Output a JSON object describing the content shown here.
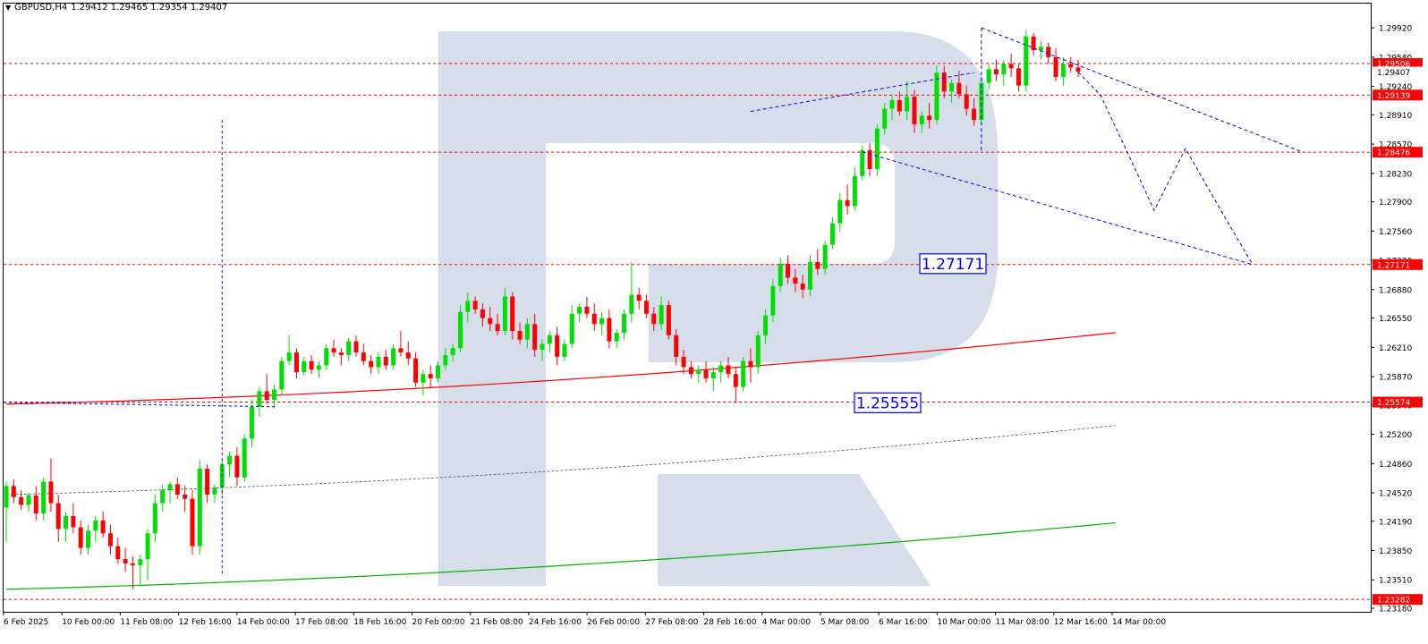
{
  "header": {
    "symbol": "GBPUSD,H4",
    "ohlc": "1.29412 1.29465 1.29354 1.29407"
  },
  "chart_data": {
    "type": "candlestick",
    "symbol": "GBPUSD",
    "timeframe": "H4",
    "y_range": [
      1.2318,
      1.3015
    ],
    "y_ticks": [
      "1.29920",
      "1.29580",
      "1.29240",
      "1.28910",
      "1.28570",
      "1.28230",
      "1.27900",
      "1.27560",
      "1.27220",
      "1.26880",
      "1.26550",
      "1.26210",
      "1.25870",
      "1.25540",
      "1.25200",
      "1.24860",
      "1.24520",
      "1.24190",
      "1.23850",
      "1.23510",
      "1.23180"
    ],
    "x_tick_labels": [
      "6 Feb 2025",
      "10 Feb 00:00",
      "11 Feb 08:00",
      "12 Feb 16:00",
      "14 Feb 00:00",
      "17 Feb 08:00",
      "18 Feb 16:00",
      "20 Feb 00:00",
      "21 Feb 08:00",
      "24 Feb 16:00",
      "26 Feb 00:00",
      "27 Feb 08:00",
      "28 Feb 16:00",
      "4 Mar 00:00",
      "5 Mar 08:00",
      "6 Mar 16:00",
      "10 Mar 00:00",
      "11 Mar 08:00",
      "12 Mar 16:00",
      "14 Mar 00:00"
    ],
    "price_tags": [
      {
        "value": "1.29506",
        "color": "#ff0000",
        "text_color": "#ffffff"
      },
      {
        "value": "1.29407",
        "color": "#ffffff",
        "text_color": "#000000"
      },
      {
        "value": "1.29139",
        "color": "#ff0000",
        "text_color": "#ffffff"
      },
      {
        "value": "1.28476",
        "color": "#ff0000",
        "text_color": "#ffffff"
      },
      {
        "value": "1.27171",
        "color": "#ff0000",
        "text_color": "#ffffff"
      },
      {
        "value": "1.25574",
        "color": "#ff0000",
        "text_color": "#ffffff"
      },
      {
        "value": "1.23282",
        "color": "#ff0000",
        "text_color": "#ffffff"
      }
    ],
    "horizontal_levels": [
      1.29506,
      1.29139,
      1.28476,
      1.27171,
      1.25574,
      1.23282
    ],
    "target_labels": [
      {
        "text": "1.27171",
        "price": 1.27171
      },
      {
        "text": "1.25555",
        "price": 1.25555
      }
    ],
    "colors": {
      "bull": "#00e000",
      "bear": "#ff0000",
      "level": "#ff0000",
      "upper_band": "#ff0000",
      "lower_band": "#00b000",
      "mid_line": "#555555",
      "projection": "#0000ff",
      "watermark": "#d5deea"
    },
    "candles": [
      [
        1.2435,
        1.2465,
        1.2395,
        1.246
      ],
      [
        1.246,
        1.2468,
        1.244,
        1.2447
      ],
      [
        1.2447,
        1.2455,
        1.2432,
        1.2438
      ],
      [
        1.2438,
        1.2452,
        1.243,
        1.2449
      ],
      [
        1.2449,
        1.246,
        1.242,
        1.2428
      ],
      [
        1.2428,
        1.247,
        1.242,
        1.2465
      ],
      [
        1.2465,
        1.2492,
        1.243,
        1.244
      ],
      [
        1.244,
        1.245,
        1.2395,
        1.241
      ],
      [
        1.241,
        1.243,
        1.2395,
        1.2425
      ],
      [
        1.2425,
        1.244,
        1.2405,
        1.2412
      ],
      [
        1.2412,
        1.242,
        1.238,
        1.2388
      ],
      [
        1.2388,
        1.2415,
        1.238,
        1.2408
      ],
      [
        1.2408,
        1.2425,
        1.2395,
        1.242
      ],
      [
        1.242,
        1.243,
        1.24,
        1.2405
      ],
      [
        1.2405,
        1.2415,
        1.238,
        1.239
      ],
      [
        1.239,
        1.24,
        1.237,
        1.2375
      ],
      [
        1.2375,
        1.2388,
        1.236,
        1.237
      ],
      [
        1.237,
        1.2378,
        1.234,
        1.2368
      ],
      [
        1.2368,
        1.238,
        1.2345,
        1.2375
      ],
      [
        1.2375,
        1.241,
        1.235,
        1.2405
      ],
      [
        1.2405,
        1.245,
        1.2395,
        1.244
      ],
      [
        1.244,
        1.2462,
        1.243,
        1.2455
      ],
      [
        1.2455,
        1.2465,
        1.244,
        1.2462
      ],
      [
        1.2462,
        1.247,
        1.2445,
        1.245
      ],
      [
        1.245,
        1.246,
        1.243,
        1.2445
      ],
      [
        1.2445,
        1.2455,
        1.238,
        1.239
      ],
      [
        1.239,
        1.249,
        1.238,
        1.248
      ],
      [
        1.248,
        1.2485,
        1.244,
        1.245
      ],
      [
        1.245,
        1.2462,
        1.244,
        1.2458
      ],
      [
        1.2458,
        1.249,
        1.245,
        1.2485
      ],
      [
        1.2485,
        1.25,
        1.247,
        1.2495
      ],
      [
        1.2495,
        1.2505,
        1.246,
        1.247
      ],
      [
        1.247,
        1.252,
        1.2465,
        1.2515
      ],
      [
        1.2515,
        1.256,
        1.2505,
        1.2552
      ],
      [
        1.2552,
        1.2575,
        1.254,
        1.257
      ],
      [
        1.257,
        1.259,
        1.2555,
        1.256
      ],
      [
        1.256,
        1.2578,
        1.255,
        1.2572
      ],
      [
        1.2572,
        1.261,
        1.2565,
        1.2605
      ],
      [
        1.2605,
        1.2635,
        1.26,
        1.2615
      ],
      [
        1.2615,
        1.262,
        1.2585,
        1.2592
      ],
      [
        1.2592,
        1.261,
        1.2588,
        1.2605
      ],
      [
        1.2605,
        1.2612,
        1.259,
        1.2595
      ],
      [
        1.2595,
        1.2605,
        1.2585,
        1.26
      ],
      [
        1.26,
        1.2625,
        1.2595,
        1.262
      ],
      [
        1.262,
        1.263,
        1.261,
        1.2615
      ],
      [
        1.2615,
        1.262,
        1.26,
        1.2612
      ],
      [
        1.2612,
        1.2632,
        1.2605,
        1.2628
      ],
      [
        1.2628,
        1.2635,
        1.261,
        1.2615
      ],
      [
        1.2615,
        1.2625,
        1.26,
        1.2605
      ],
      [
        1.2605,
        1.2612,
        1.259,
        1.2598
      ],
      [
        1.2598,
        1.2615,
        1.259,
        1.261
      ],
      [
        1.261,
        1.2618,
        1.2595,
        1.26
      ],
      [
        1.26,
        1.2625,
        1.2595,
        1.262
      ],
      [
        1.262,
        1.264,
        1.261,
        1.2615
      ],
      [
        1.2615,
        1.2628,
        1.26,
        1.2608
      ],
      [
        1.2608,
        1.2615,
        1.2575,
        1.258
      ],
      [
        1.258,
        1.2595,
        1.2565,
        1.259
      ],
      [
        1.259,
        1.26,
        1.2575,
        1.2585
      ],
      [
        1.2585,
        1.2605,
        1.258,
        1.26
      ],
      [
        1.26,
        1.262,
        1.2595,
        1.2612
      ],
      [
        1.2612,
        1.2625,
        1.2605,
        1.262
      ],
      [
        1.262,
        1.267,
        1.2615,
        1.2662
      ],
      [
        1.2662,
        1.2685,
        1.265,
        1.2675
      ],
      [
        1.2675,
        1.268,
        1.266,
        1.2665
      ],
      [
        1.2665,
        1.2672,
        1.2645,
        1.2655
      ],
      [
        1.2655,
        1.2668,
        1.264,
        1.2648
      ],
      [
        1.2648,
        1.266,
        1.2635,
        1.264
      ],
      [
        1.264,
        1.269,
        1.2635,
        1.268
      ],
      [
        1.268,
        1.2685,
        1.263,
        1.264
      ],
      [
        1.264,
        1.265,
        1.2625,
        1.263
      ],
      [
        1.263,
        1.2655,
        1.262,
        1.2648
      ],
      [
        1.2648,
        1.266,
        1.261,
        1.2618
      ],
      [
        1.2618,
        1.263,
        1.2605,
        1.2625
      ],
      [
        1.2625,
        1.264,
        1.2615,
        1.2635
      ],
      [
        1.2635,
        1.2645,
        1.26,
        1.261
      ],
      [
        1.261,
        1.263,
        1.2605,
        1.2625
      ],
      [
        1.2625,
        1.267,
        1.262,
        1.266
      ],
      [
        1.266,
        1.2672,
        1.265,
        1.2668
      ],
      [
        1.2668,
        1.268,
        1.2655,
        1.266
      ],
      [
        1.266,
        1.2672,
        1.264,
        1.2648
      ],
      [
        1.2648,
        1.2662,
        1.2635,
        1.2655
      ],
      [
        1.2655,
        1.2665,
        1.262,
        1.2628
      ],
      [
        1.2628,
        1.2642,
        1.262,
        1.2638
      ],
      [
        1.2638,
        1.2665,
        1.263,
        1.266
      ],
      [
        1.266,
        1.272,
        1.265,
        1.2682
      ],
      [
        1.2682,
        1.269,
        1.2665,
        1.2675
      ],
      [
        1.2675,
        1.2682,
        1.2655,
        1.266
      ],
      [
        1.266,
        1.2668,
        1.264,
        1.2648
      ],
      [
        1.2648,
        1.268,
        1.264,
        1.267
      ],
      [
        1.267,
        1.2675,
        1.263,
        1.2635
      ],
      [
        1.2635,
        1.2642,
        1.26,
        1.261
      ],
      [
        1.261,
        1.2618,
        1.259,
        1.2598
      ],
      [
        1.2598,
        1.2605,
        1.2585,
        1.259
      ],
      [
        1.259,
        1.26,
        1.258,
        1.2595
      ],
      [
        1.2595,
        1.2605,
        1.258,
        1.2585
      ],
      [
        1.2585,
        1.2598,
        1.257,
        1.2592
      ],
      [
        1.2592,
        1.2605,
        1.258,
        1.26
      ],
      [
        1.26,
        1.261,
        1.2585,
        1.259
      ],
      [
        1.259,
        1.2598,
        1.2556,
        1.2575
      ],
      [
        1.2575,
        1.261,
        1.257,
        1.2605
      ],
      [
        1.2605,
        1.262,
        1.258,
        1.2598
      ],
      [
        1.2598,
        1.264,
        1.259,
        1.2635
      ],
      [
        1.2635,
        1.2665,
        1.2625,
        1.2658
      ],
      [
        1.2658,
        1.27,
        1.265,
        1.2692
      ],
      [
        1.2692,
        1.2725,
        1.2685,
        1.2718
      ],
      [
        1.2718,
        1.2728,
        1.2695,
        1.2702
      ],
      [
        1.2702,
        1.2712,
        1.2685,
        1.2695
      ],
      [
        1.2695,
        1.2705,
        1.2678,
        1.2688
      ],
      [
        1.2688,
        1.2728,
        1.268,
        1.272
      ],
      [
        1.272,
        1.2735,
        1.2705,
        1.2712
      ],
      [
        1.2712,
        1.2745,
        1.2705,
        1.274
      ],
      [
        1.274,
        1.2772,
        1.2735,
        1.2765
      ],
      [
        1.2765,
        1.28,
        1.2755,
        1.2792
      ],
      [
        1.2792,
        1.281,
        1.2775,
        1.2785
      ],
      [
        1.2785,
        1.283,
        1.278,
        1.282
      ],
      [
        1.282,
        1.2855,
        1.2815,
        1.285
      ],
      [
        1.285,
        1.2858,
        1.282,
        1.2828
      ],
      [
        1.2828,
        1.288,
        1.282,
        1.2875
      ],
      [
        1.2875,
        1.2905,
        1.2868,
        1.2898
      ],
      [
        1.2898,
        1.2915,
        1.2885,
        1.2908
      ],
      [
        1.2908,
        1.2918,
        1.289,
        1.2895
      ],
      [
        1.2895,
        1.293,
        1.2885,
        1.2912
      ],
      [
        1.2912,
        1.292,
        1.287,
        1.288
      ],
      [
        1.288,
        1.2895,
        1.287,
        1.289
      ],
      [
        1.289,
        1.2905,
        1.2875,
        1.2885
      ],
      [
        1.2885,
        1.2948,
        1.288,
        1.294
      ],
      [
        1.294,
        1.2948,
        1.291,
        1.2918
      ],
      [
        1.2918,
        1.2932,
        1.2905,
        1.2928
      ],
      [
        1.2928,
        1.2942,
        1.291,
        1.2915
      ],
      [
        1.2915,
        1.2925,
        1.289,
        1.2898
      ],
      [
        1.2898,
        1.291,
        1.2878,
        1.2885
      ],
      [
        1.2885,
        1.2935,
        1.288,
        1.2928
      ],
      [
        1.2928,
        1.295,
        1.292,
        1.2944
      ],
      [
        1.2944,
        1.2955,
        1.293,
        1.2938
      ],
      [
        1.2938,
        1.2955,
        1.2925,
        1.295
      ],
      [
        1.295,
        1.2962,
        1.2935,
        1.2945
      ],
      [
        1.2945,
        1.295,
        1.2918,
        1.2925
      ],
      [
        1.2925,
        1.299,
        1.2918,
        1.2982
      ],
      [
        1.2982,
        1.2986,
        1.296,
        1.2966
      ],
      [
        1.2966,
        1.2976,
        1.2955,
        1.297
      ],
      [
        1.297,
        1.2975,
        1.295,
        1.2958
      ],
      [
        1.2958,
        1.2968,
        1.293,
        1.2935
      ],
      [
        1.2935,
        1.2958,
        1.2925,
        1.295
      ],
      [
        1.295,
        1.2958,
        1.294,
        1.2946
      ],
      [
        1.2946,
        1.2955,
        1.2935,
        1.2941
      ]
    ]
  }
}
